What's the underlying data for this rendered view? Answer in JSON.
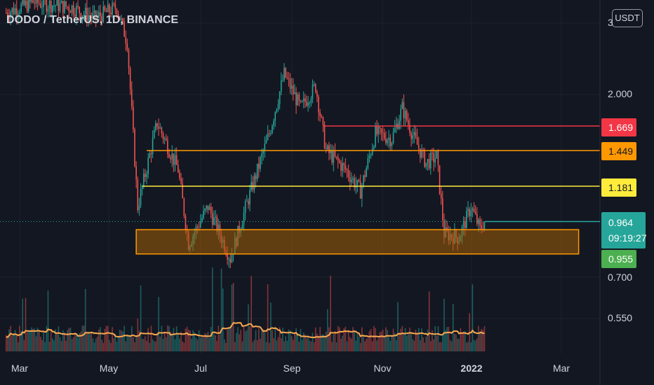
{
  "header": {
    "title": "DODO / TetherUS, 1D, BINANCE",
    "currency_button": "USDT"
  },
  "price_axis": {
    "labels": [
      "3",
      "2.000",
      "0.700",
      "0.550"
    ]
  },
  "time_axis": {
    "labels": [
      "Mar",
      "May",
      "Jul",
      "Sep",
      "Nov",
      "2022",
      "Mar"
    ]
  },
  "levels": [
    {
      "price": "1.669",
      "color": "#f23645",
      "text_color": "#ffffff"
    },
    {
      "price": "1.449",
      "color": "#ff9800",
      "text_color": "#131722"
    },
    {
      "price": "1.181",
      "color": "#ffeb3b",
      "text_color": "#131722"
    }
  ],
  "current": {
    "price": "0.964",
    "countdown": "09:19:27",
    "color": "#26a69a"
  },
  "support_tag": {
    "price": "0.955",
    "color": "#4caf50"
  },
  "colors": {
    "background": "#131722",
    "up": "#26a69a",
    "down": "#ef5350",
    "ma_line": "#f7a74f",
    "support_zone_border": "#ff9800",
    "support_zone_fill": "#a35d06"
  },
  "chart_data": {
    "type": "candlestick",
    "symbol": "DODO / TetherUS",
    "interval": "1D",
    "exchange": "BINANCE",
    "scale": "log",
    "x_ticks": [
      "Mar",
      "May",
      "Jul",
      "Sep",
      "Nov",
      "2022",
      "Mar"
    ],
    "y_ticks": [
      3,
      2.0,
      0.7,
      0.55
    ],
    "price_waypoints": [
      {
        "date": "2021-02-20",
        "close": 3.2
      },
      {
        "date": "2021-03-10",
        "close": 3.4
      },
      {
        "date": "2021-04-05",
        "close": 3.3
      },
      {
        "date": "2021-04-20",
        "close": 3.1
      },
      {
        "date": "2021-05-05",
        "close": 3.3
      },
      {
        "date": "2021-05-12",
        "close": 2.7
      },
      {
        "date": "2021-05-19",
        "close": 1.05
      },
      {
        "date": "2021-06-01",
        "close": 1.7
      },
      {
        "date": "2021-06-15",
        "close": 1.3
      },
      {
        "date": "2021-06-22",
        "close": 0.85
      },
      {
        "date": "2021-07-05",
        "close": 1.05
      },
      {
        "date": "2021-07-20",
        "close": 0.78
      },
      {
        "date": "2021-08-01",
        "close": 1.1
      },
      {
        "date": "2021-08-15",
        "close": 1.6
      },
      {
        "date": "2021-08-25",
        "close": 2.25
      },
      {
        "date": "2021-09-05",
        "close": 1.85
      },
      {
        "date": "2021-09-15",
        "close": 2.1
      },
      {
        "date": "2021-09-22",
        "close": 1.45
      },
      {
        "date": "2021-10-05",
        "close": 1.3
      },
      {
        "date": "2021-10-15",
        "close": 1.15
      },
      {
        "date": "2021-10-25",
        "close": 1.6
      },
      {
        "date": "2021-11-05",
        "close": 1.55
      },
      {
        "date": "2021-11-12",
        "close": 1.85
      },
      {
        "date": "2021-11-20",
        "close": 1.55
      },
      {
        "date": "2021-11-28",
        "close": 1.35
      },
      {
        "date": "2021-12-05",
        "close": 1.4
      },
      {
        "date": "2021-12-10",
        "close": 0.9
      },
      {
        "date": "2021-12-20",
        "close": 0.88
      },
      {
        "date": "2021-12-28",
        "close": 1.05
      },
      {
        "date": "2022-01-03",
        "close": 0.92
      },
      {
        "date": "2022-01-06",
        "close": 0.964
      }
    ],
    "horizontal_levels": [
      1.669,
      1.449,
      1.181
    ],
    "support_zone": {
      "low": 0.8,
      "high": 0.92
    },
    "last_price": 0.964,
    "bar_countdown": "09:19:27"
  }
}
